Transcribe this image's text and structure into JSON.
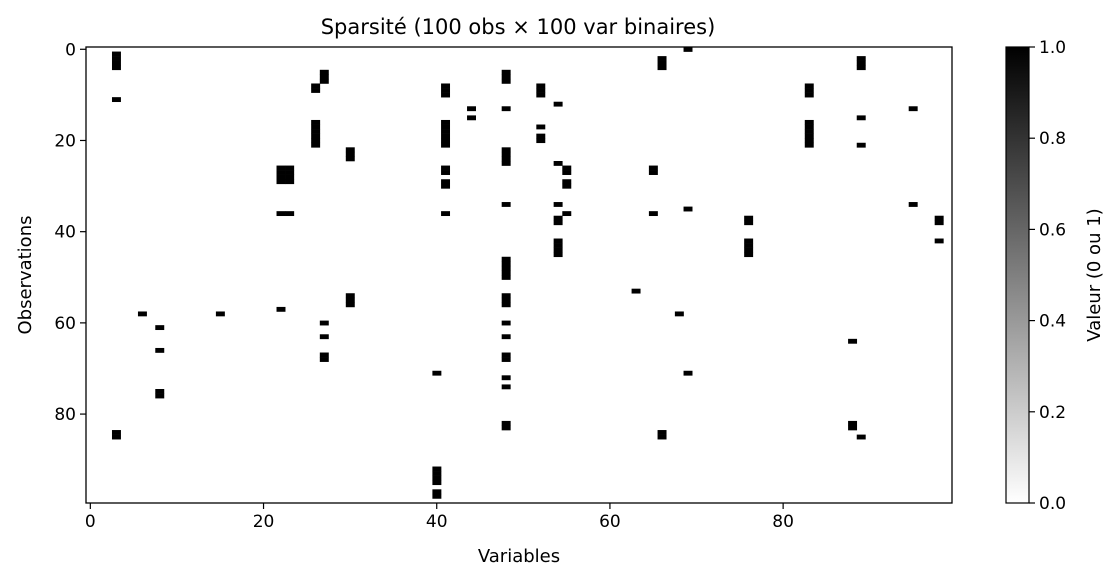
{
  "chart_data": {
    "type": "heatmap",
    "title": "Sparsité (100 obs × 100 var binaires)",
    "xlabel": "Variables",
    "ylabel": "Observations",
    "n_rows": 100,
    "n_cols": 100,
    "xlim": [
      -0.5,
      99.5
    ],
    "ylim": [
      99.5,
      -0.5
    ],
    "x_ticks": [
      0,
      20,
      40,
      60,
      80
    ],
    "x_tick_labels": [
      "0",
      "20",
      "40",
      "60",
      "80"
    ],
    "y_ticks": [
      0,
      20,
      40,
      60,
      80
    ],
    "y_tick_labels": [
      "0",
      "20",
      "40",
      "60",
      "80"
    ],
    "colormap": "binary",
    "color_min": "#ffffff",
    "color_max": "#000000",
    "colorbar": {
      "label": "Valeur (0 ou 1)",
      "range": [
        0.0,
        1.0
      ],
      "ticks": [
        0.0,
        0.2,
        0.4,
        0.6,
        0.8,
        1.0
      ],
      "tick_labels": [
        "0.0",
        "0.2",
        "0.4",
        "0.6",
        "0.8",
        "1.0"
      ]
    },
    "ones": [
      [
        1,
        3
      ],
      [
        2,
        3
      ],
      [
        3,
        3
      ],
      [
        4,
        3
      ],
      [
        11,
        3
      ],
      [
        84,
        3
      ],
      [
        85,
        3
      ],
      [
        58,
        6
      ],
      [
        61,
        8
      ],
      [
        66,
        8
      ],
      [
        75,
        8
      ],
      [
        76,
        8
      ],
      [
        58,
        15
      ],
      [
        26,
        22
      ],
      [
        27,
        22
      ],
      [
        28,
        22
      ],
      [
        29,
        22
      ],
      [
        36,
        22
      ],
      [
        57,
        22
      ],
      [
        26,
        23
      ],
      [
        27,
        23
      ],
      [
        28,
        23
      ],
      [
        29,
        23
      ],
      [
        36,
        23
      ],
      [
        8,
        26
      ],
      [
        9,
        26
      ],
      [
        16,
        26
      ],
      [
        17,
        26
      ],
      [
        18,
        26
      ],
      [
        19,
        26
      ],
      [
        20,
        26
      ],
      [
        21,
        26
      ],
      [
        5,
        27
      ],
      [
        6,
        27
      ],
      [
        7,
        27
      ],
      [
        60,
        27
      ],
      [
        63,
        27
      ],
      [
        67,
        27
      ],
      [
        68,
        27
      ],
      [
        22,
        30
      ],
      [
        23,
        30
      ],
      [
        24,
        30
      ],
      [
        54,
        30
      ],
      [
        55,
        30
      ],
      [
        56,
        30
      ],
      [
        71,
        40
      ],
      [
        92,
        40
      ],
      [
        93,
        40
      ],
      [
        94,
        40
      ],
      [
        95,
        40
      ],
      [
        97,
        40
      ],
      [
        98,
        40
      ],
      [
        8,
        41
      ],
      [
        9,
        41
      ],
      [
        10,
        41
      ],
      [
        16,
        41
      ],
      [
        17,
        41
      ],
      [
        18,
        41
      ],
      [
        19,
        41
      ],
      [
        20,
        41
      ],
      [
        21,
        41
      ],
      [
        26,
        41
      ],
      [
        27,
        41
      ],
      [
        29,
        41
      ],
      [
        30,
        41
      ],
      [
        36,
        41
      ],
      [
        13,
        44
      ],
      [
        15,
        44
      ],
      [
        5,
        48
      ],
      [
        6,
        48
      ],
      [
        7,
        48
      ],
      [
        13,
        48
      ],
      [
        22,
        48
      ],
      [
        23,
        48
      ],
      [
        24,
        48
      ],
      [
        25,
        48
      ],
      [
        34,
        48
      ],
      [
        46,
        48
      ],
      [
        47,
        48
      ],
      [
        48,
        48
      ],
      [
        49,
        48
      ],
      [
        50,
        48
      ],
      [
        54,
        48
      ],
      [
        55,
        48
      ],
      [
        56,
        48
      ],
      [
        60,
        48
      ],
      [
        63,
        48
      ],
      [
        67,
        48
      ],
      [
        68,
        48
      ],
      [
        72,
        48
      ],
      [
        74,
        48
      ],
      [
        82,
        48
      ],
      [
        83,
        48
      ],
      [
        8,
        52
      ],
      [
        9,
        52
      ],
      [
        10,
        52
      ],
      [
        17,
        52
      ],
      [
        19,
        52
      ],
      [
        20,
        52
      ],
      [
        12,
        54
      ],
      [
        25,
        54
      ],
      [
        34,
        54
      ],
      [
        37,
        54
      ],
      [
        38,
        54
      ],
      [
        42,
        54
      ],
      [
        43,
        54
      ],
      [
        44,
        54
      ],
      [
        45,
        54
      ],
      [
        26,
        55
      ],
      [
        27,
        55
      ],
      [
        29,
        55
      ],
      [
        30,
        55
      ],
      [
        36,
        55
      ],
      [
        53,
        63
      ],
      [
        26,
        65
      ],
      [
        27,
        65
      ],
      [
        36,
        65
      ],
      [
        2,
        66
      ],
      [
        3,
        66
      ],
      [
        4,
        66
      ],
      [
        84,
        66
      ],
      [
        85,
        66
      ],
      [
        58,
        68
      ],
      [
        0,
        69
      ],
      [
        35,
        69
      ],
      [
        71,
        69
      ],
      [
        37,
        76
      ],
      [
        38,
        76
      ],
      [
        42,
        76
      ],
      [
        43,
        76
      ],
      [
        44,
        76
      ],
      [
        45,
        76
      ],
      [
        8,
        83
      ],
      [
        9,
        83
      ],
      [
        10,
        83
      ],
      [
        16,
        83
      ],
      [
        17,
        83
      ],
      [
        18,
        83
      ],
      [
        19,
        83
      ],
      [
        20,
        83
      ],
      [
        21,
        83
      ],
      [
        64,
        88
      ],
      [
        82,
        88
      ],
      [
        83,
        88
      ],
      [
        2,
        89
      ],
      [
        3,
        89
      ],
      [
        4,
        89
      ],
      [
        15,
        89
      ],
      [
        21,
        89
      ],
      [
        85,
        89
      ],
      [
        13,
        95
      ],
      [
        34,
        95
      ],
      [
        37,
        98
      ],
      [
        38,
        98
      ],
      [
        42,
        98
      ]
    ]
  }
}
